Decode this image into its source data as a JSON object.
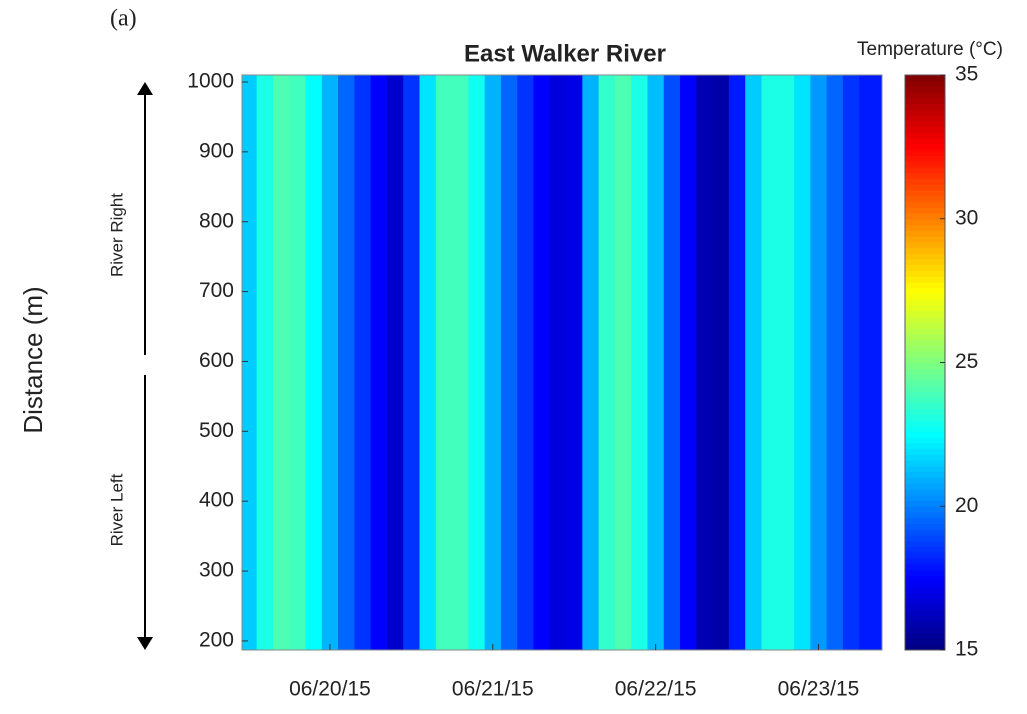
{
  "chart_data": {
    "type": "heatmap",
    "panel_label": "(a)",
    "title": "East Walker River",
    "y_label": "Distance (m)",
    "annotations": [
      "River Right",
      "River Left"
    ],
    "colorbar_label": "Temperature (°C)",
    "colormap": "jet",
    "x": [
      -0.5,
      -0.4,
      -0.3,
      -0.2,
      -0.1,
      0,
      0.1,
      0.2,
      0.3,
      0.4,
      0.5,
      0.6,
      0.7,
      0.8,
      0.9,
      1,
      1.1,
      1.2,
      1.3,
      1.4,
      1.5,
      1.6,
      1.7,
      1.8,
      1.9,
      2,
      2.1,
      2.2,
      2.3,
      2.4,
      2.5,
      2.6,
      2.7,
      2.8,
      2.9,
      3,
      3.1,
      3.2,
      3.3
    ],
    "values": [
      21.5,
      23,
      24,
      23.8,
      22.5,
      21,
      19.5,
      18.5,
      17.5,
      16.5,
      18.5,
      22,
      23.8,
      23.8,
      22.8,
      21,
      19.5,
      18.5,
      17.5,
      16.8,
      17,
      21,
      23.5,
      24,
      23,
      21.2,
      19,
      17.5,
      16,
      15.8,
      18,
      21.5,
      23,
      23,
      22,
      20.5,
      19.5,
      18.5,
      18
    ],
    "xlim": [
      -0.54,
      3.39
    ],
    "xticks": [
      {
        "value": 0,
        "label": "06/20/15"
      },
      {
        "value": 1,
        "label": "06/21/15"
      },
      {
        "value": 2,
        "label": "06/22/15"
      },
      {
        "value": 3,
        "label": "06/23/15"
      }
    ],
    "ylim": [
      187,
      1010
    ],
    "yticks": [
      200,
      300,
      400,
      500,
      600,
      700,
      800,
      900,
      1000
    ],
    "clim": [
      15,
      35
    ],
    "cticks": [
      15,
      20,
      25,
      30,
      35
    ]
  }
}
